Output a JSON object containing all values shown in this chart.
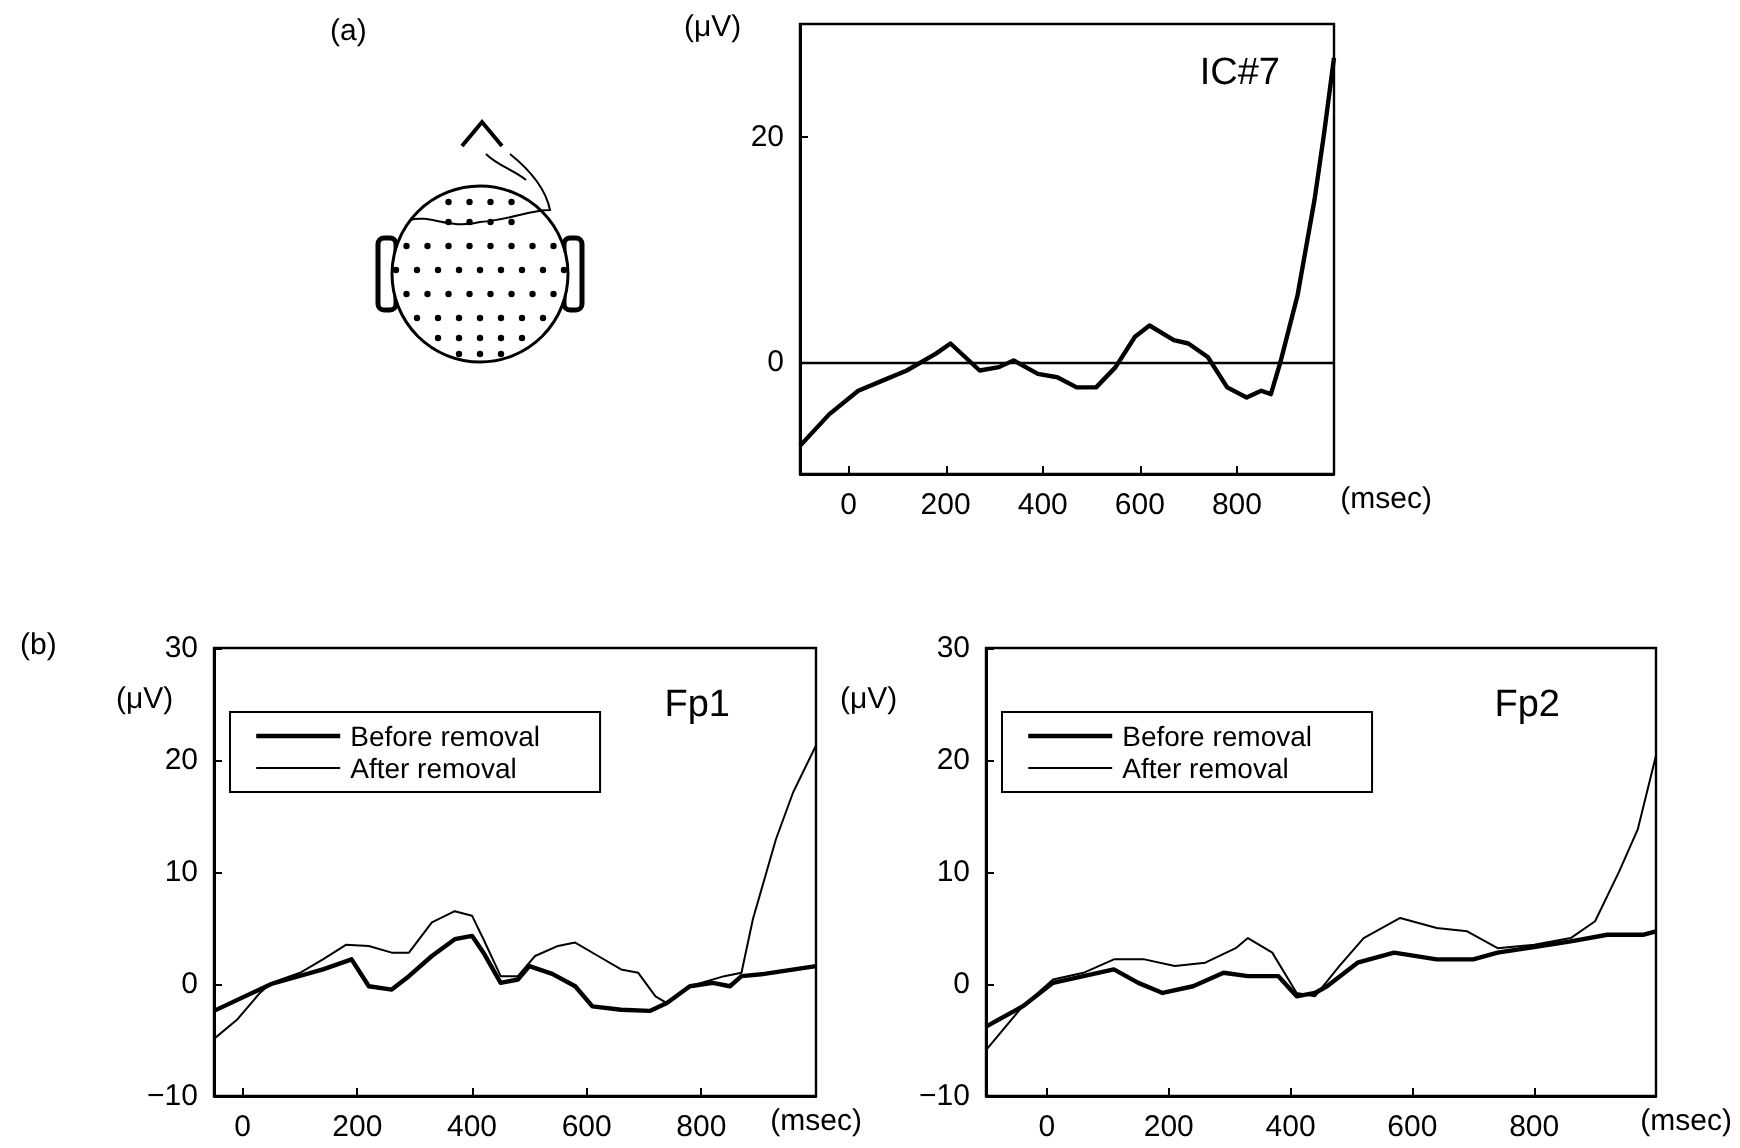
{
  "chart_data": [
    {
      "type": "line",
      "title": "IC#7",
      "xlabel": "(msec)",
      "ylabel": "(μV)",
      "annotations": [
        "(a)"
      ],
      "xlim": [
        -100,
        1000
      ],
      "xticks": [
        0,
        200,
        400,
        600,
        800
      ],
      "ylim": [
        -10,
        30
      ],
      "yticks": [
        0,
        20
      ],
      "grid": false,
      "legend": false,
      "marker": "none",
      "ref_lines": [
        {
          "axis": "y",
          "value": 0,
          "color": "#000000"
        }
      ],
      "series": [
        {
          "color": "#000000",
          "x": [
            -100,
            -40,
            20,
            70,
            120,
            180,
            210,
            240,
            270,
            310,
            340,
            390,
            430,
            470,
            510,
            550,
            590,
            620,
            670,
            700,
            740,
            780,
            820,
            850,
            870,
            890,
            925,
            960,
            980,
            1000
          ],
          "values": [
            -7.5,
            -4.7,
            -2.6,
            -1.7,
            -0.8,
            0.7,
            1.6,
            0.4,
            -0.8,
            -0.5,
            0.1,
            -1.1,
            -1.4,
            -2.3,
            -2.3,
            -0.5,
            2.2,
            3.2,
            1.9,
            1.6,
            0.4,
            -2.3,
            -3.2,
            -2.6,
            -2.9,
            0,
            5.9,
            14.4,
            20.4,
            27
          ]
        }
      ]
    },
    {
      "type": "line",
      "title": "Fp1",
      "xlabel": "(msec)",
      "ylabel": "(μV)",
      "annotations": [
        "(b)"
      ],
      "xlim": [
        -50,
        1000
      ],
      "xticks": [
        0,
        200,
        400,
        600,
        800
      ],
      "ylim": [
        -10,
        30
      ],
      "yticks": [
        {
          "value": -10,
          "label": "−10"
        },
        0,
        10,
        20,
        30
      ],
      "grid": false,
      "legend": "top left",
      "marker": "none",
      "series": [
        {
          "name": "Before removal",
          "color": "#000000",
          "x": [
            -50,
            50,
            140,
            190,
            220,
            260,
            290,
            330,
            370,
            400,
            420,
            450,
            480,
            500,
            540,
            580,
            610,
            660,
            710,
            740,
            780,
            820,
            850,
            870,
            910,
            1000
          ],
          "values": [
            -2.4,
            0,
            1.3,
            2.2,
            -0.2,
            -0.5,
            0.7,
            2.5,
            4,
            4.3,
            2.8,
            0.1,
            0.4,
            1.6,
            0.9,
            -0.2,
            -2,
            -2.3,
            -2.4,
            -1.7,
            -0.2,
            0.1,
            -0.2,
            0.7,
            0.9,
            1.6
          ]
        },
        {
          "name": "After removal",
          "color": "#000000",
          "x": [
            -50,
            -10,
            30,
            50,
            100,
            140,
            180,
            220,
            260,
            290,
            330,
            370,
            400,
            420,
            450,
            480,
            510,
            550,
            580,
            620,
            660,
            690,
            720,
            740,
            780,
            840,
            870,
            890,
            930,
            960,
            1000
          ],
          "values": [
            -4.9,
            -3.2,
            -0.8,
            0.1,
            1,
            2.2,
            3.5,
            3.4,
            2.8,
            2.8,
            5.5,
            6.5,
            6.1,
            4,
            0.7,
            0.7,
            2.5,
            3.4,
            3.7,
            2.5,
            1.3,
            1,
            -1.1,
            -1.7,
            -0.2,
            0.7,
            1,
            5.8,
            12.9,
            17.1,
            21.3
          ]
        }
      ]
    },
    {
      "type": "line",
      "title": "Fp2",
      "xlabel": "(msec)",
      "ylabel": "(μV)",
      "xlim": [
        -100,
        1000
      ],
      "xticks": [
        0,
        200,
        400,
        600,
        800
      ],
      "ylim": [
        -10,
        30
      ],
      "yticks": [
        {
          "value": -10,
          "label": "−10"
        },
        0,
        10,
        20,
        30
      ],
      "grid": false,
      "legend": "top left",
      "marker": "none",
      "series": [
        {
          "name": "Before removal",
          "color": "#000000",
          "x": [
            -100,
            -40,
            10,
            60,
            110,
            150,
            190,
            240,
            290,
            330,
            380,
            410,
            440,
            460,
            510,
            570,
            640,
            700,
            740,
            800,
            860,
            920,
            980,
            1000
          ],
          "values": [
            -3.8,
            -2,
            0.1,
            0.7,
            1.3,
            0.1,
            -0.8,
            -0.2,
            1,
            0.7,
            0.7,
            -1.1,
            -0.8,
            -0.2,
            1.9,
            2.8,
            2.2,
            2.2,
            2.8,
            3.3,
            3.8,
            4.4,
            4.4,
            4.7
          ]
        },
        {
          "name": "After removal",
          "color": "#000000",
          "x": [
            -100,
            -40,
            10,
            60,
            110,
            160,
            210,
            260,
            310,
            330,
            370,
            410,
            440,
            480,
            520,
            580,
            640,
            690,
            740,
            800,
            860,
            900,
            940,
            970,
            1000
          ],
          "values": [
            -5.9,
            -2,
            0.4,
            1,
            2.2,
            2.2,
            1.6,
            1.9,
            3.2,
            4.1,
            2.8,
            -0.8,
            -1.1,
            1.6,
            4.1,
            5.9,
            5,
            4.7,
            3.2,
            3.5,
            4.1,
            5.6,
            10.1,
            13.8,
            20.4
          ]
        }
      ]
    }
  ]
}
